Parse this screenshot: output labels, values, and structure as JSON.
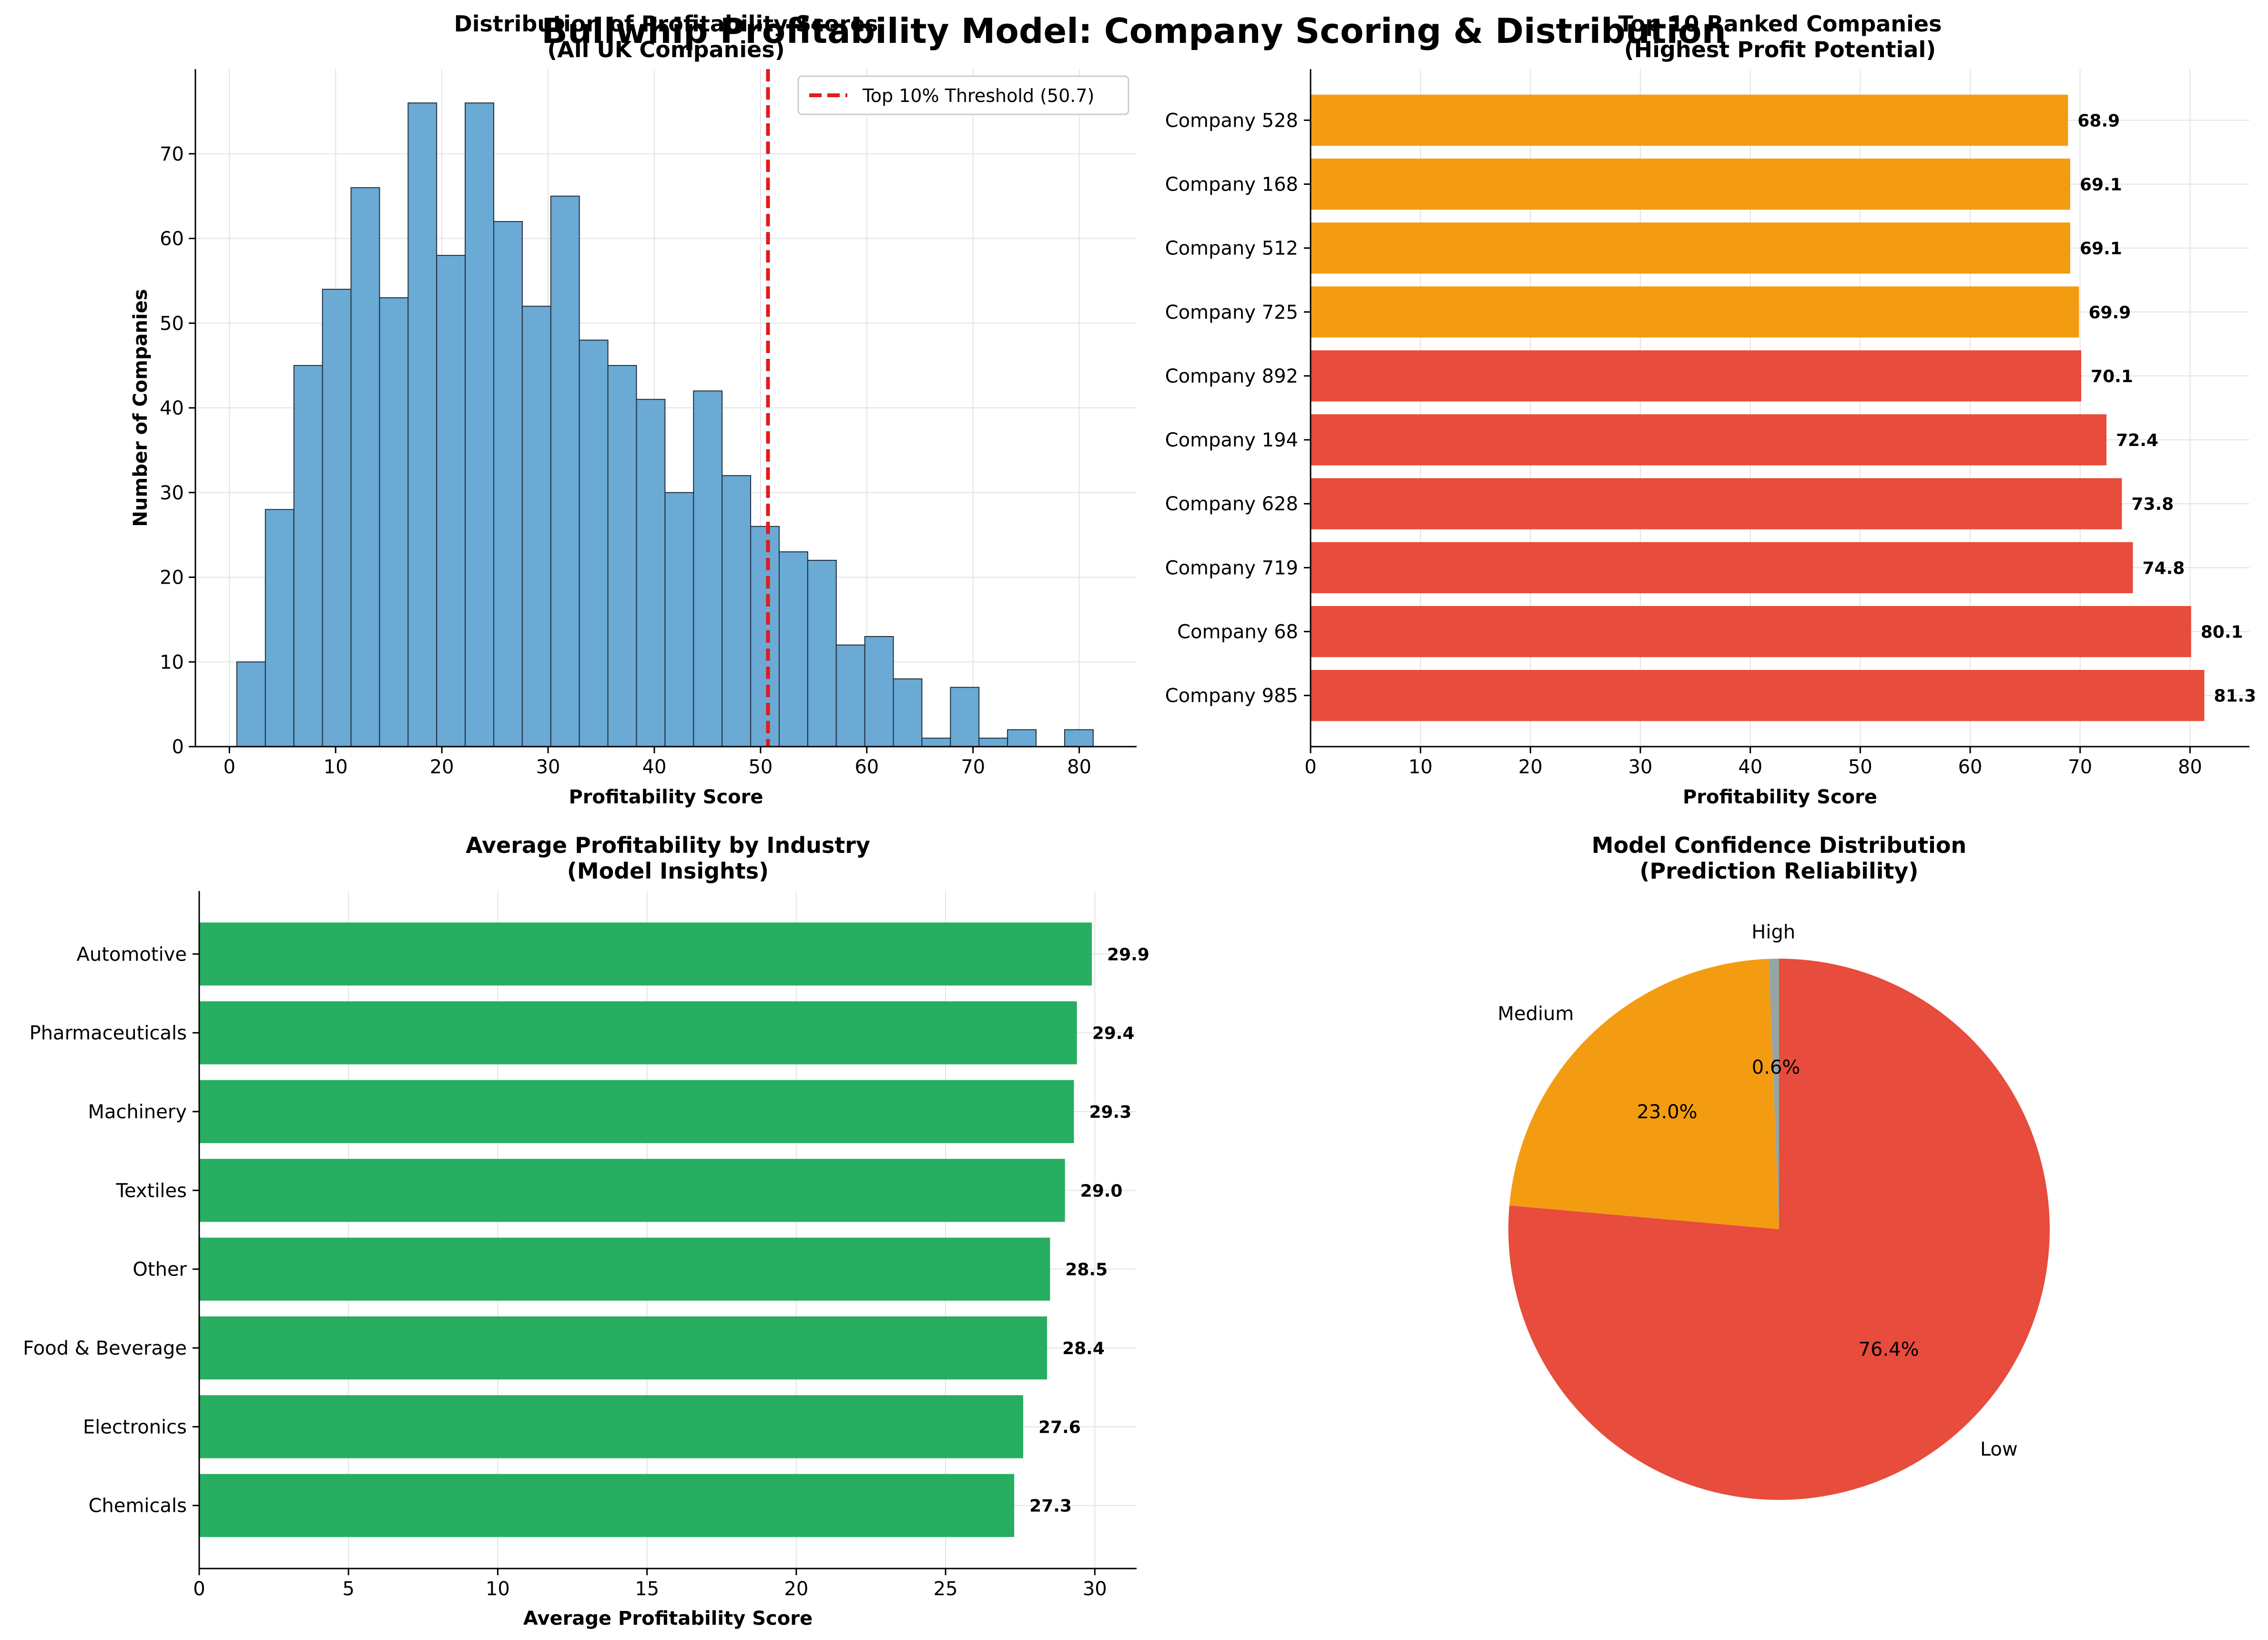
{
  "figure": {
    "suptitle": "Bullwhip Profitability Model: Company Scoring & Distribution"
  },
  "colors": {
    "hist_fill": "#6aaad4",
    "hist_edge": "#1f2f3f",
    "threshold_line": "#e31a1c",
    "top_orange": "#f39c12",
    "top_red": "#e74c3c",
    "industry_green": "#27ae60",
    "pie_low": "#e74c3c",
    "pie_medium": "#f39c12",
    "pie_high": "#95a5a6",
    "grid": "#e3e3e3",
    "axis": "#000000"
  },
  "chart_data": [
    {
      "type": "bar",
      "subtype": "histogram",
      "title": "Distribution of Profitability Scores\n(All UK Companies)",
      "xlabel": "Profitability Score",
      "ylabel": "Number of Companies",
      "xlim": [
        -3.2,
        85.4
      ],
      "ylim": [
        0,
        80
      ],
      "xticks": [
        0,
        10,
        20,
        30,
        40,
        50,
        60,
        70,
        80
      ],
      "yticks": [
        0,
        10,
        20,
        30,
        40,
        50,
        60,
        70
      ],
      "bin_start": 0.7,
      "bin_width": 2.687,
      "counts": [
        10,
        28,
        45,
        54,
        66,
        53,
        76,
        58,
        76,
        62,
        52,
        65,
        48,
        45,
        41,
        30,
        42,
        32,
        26,
        23,
        22,
        12,
        13,
        8,
        1,
        7,
        1,
        2,
        0,
        2
      ],
      "threshold": {
        "value": 50.7,
        "label": "Top 10% Threshold (50.7)"
      },
      "legend": "top-right",
      "grid": true
    },
    {
      "type": "bar",
      "orientation": "horizontal",
      "title": "Top 10 Ranked Companies\n(Highest Profit Potential)",
      "xlabel": "Profitability Score",
      "xlim": [
        0,
        85.4
      ],
      "xticks": [
        0,
        10,
        20,
        30,
        40,
        50,
        60,
        70,
        80
      ],
      "categories": [
        "Company 985",
        "Company 68",
        "Company 719",
        "Company 628",
        "Company 194",
        "Company 892",
        "Company 725",
        "Company 512",
        "Company 168",
        "Company 528"
      ],
      "values": [
        81.3,
        80.1,
        74.8,
        73.8,
        72.4,
        70.1,
        69.9,
        69.1,
        69.1,
        68.9
      ],
      "value_labels": [
        "81.3",
        "80.1",
        "74.8",
        "73.8",
        "72.4",
        "70.1",
        "69.9",
        "69.1",
        "69.1",
        "68.9"
      ],
      "bar_colors": [
        "top_red",
        "top_red",
        "top_red",
        "top_red",
        "top_red",
        "top_red",
        "top_orange",
        "top_orange",
        "top_orange",
        "top_orange"
      ],
      "grid": true
    },
    {
      "type": "bar",
      "orientation": "horizontal",
      "title": "Average Profitability by Industry\n(Model Insights)",
      "xlabel": "Average Profitability Score",
      "xlim": [
        0,
        31.4
      ],
      "xticks": [
        0,
        5,
        10,
        15,
        20,
        25,
        30
      ],
      "categories": [
        "Chemicals",
        "Electronics",
        "Food & Beverage",
        "Other",
        "Textiles",
        "Machinery",
        "Pharmaceuticals",
        "Automotive"
      ],
      "values": [
        27.3,
        27.6,
        28.4,
        28.5,
        29.0,
        29.3,
        29.4,
        29.9
      ],
      "value_labels": [
        "27.3",
        "27.6",
        "28.4",
        "28.5",
        "29.0",
        "29.3",
        "29.4",
        "29.9"
      ],
      "grid": true
    },
    {
      "type": "pie",
      "title": "Model Confidence Distribution\n(Prediction Reliability)",
      "start_angle_deg": 90,
      "slices": [
        {
          "label": "High",
          "value": 0.6,
          "pct_label": "0.6%",
          "color": "pie_high"
        },
        {
          "label": "Medium",
          "value": 23.0,
          "pct_label": "23.0%",
          "color": "pie_medium"
        },
        {
          "label": "Low",
          "value": 76.4,
          "pct_label": "76.4%",
          "color": "pie_low"
        }
      ]
    }
  ]
}
